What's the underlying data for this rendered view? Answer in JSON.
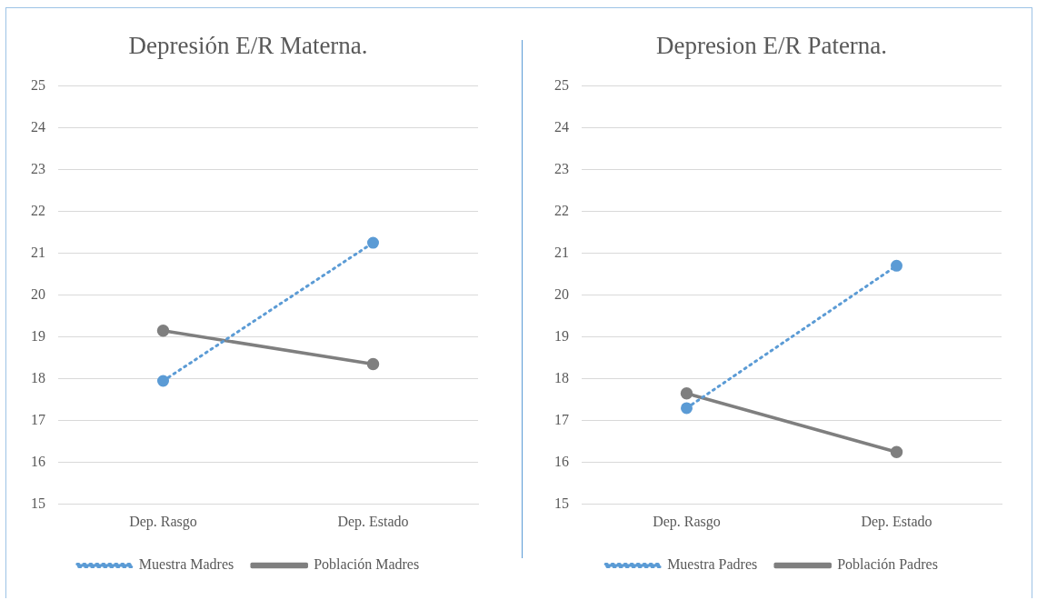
{
  "chart_data": [
    {
      "type": "line",
      "title": "Depresión E/R Materna.",
      "categories": [
        "Dep. Rasgo",
        "Dep. Estado"
      ],
      "series": [
        {
          "name": "Muestra Madres",
          "color": "#5b9bd5",
          "values": [
            17.95,
            21.25
          ],
          "line_style": "dotted"
        },
        {
          "name": "Población Madres",
          "color": "#7f7f7f",
          "values": [
            19.15,
            18.35
          ],
          "line_style": "solid"
        }
      ],
      "ylim": [
        15,
        25
      ],
      "yticks": [
        15,
        16,
        17,
        18,
        19,
        20,
        21,
        22,
        23,
        24,
        25
      ],
      "grid": "y",
      "legend": "bottom",
      "marker": "circle"
    },
    {
      "type": "line",
      "title": "Depresion E/R Paterna.",
      "categories": [
        "Dep. Rasgo",
        "Dep. Estado"
      ],
      "series": [
        {
          "name": "Muestra Padres",
          "color": "#5b9bd5",
          "values": [
            17.3,
            20.7
          ],
          "line_style": "dotted"
        },
        {
          "name": "Población Padres",
          "color": "#7f7f7f",
          "values": [
            17.65,
            16.25
          ],
          "line_style": "solid"
        }
      ],
      "ylim": [
        15,
        25
      ],
      "yticks": [
        15,
        16,
        17,
        18,
        19,
        20,
        21,
        22,
        23,
        24,
        25
      ],
      "grid": "y",
      "legend": "bottom",
      "marker": "circle"
    }
  ]
}
